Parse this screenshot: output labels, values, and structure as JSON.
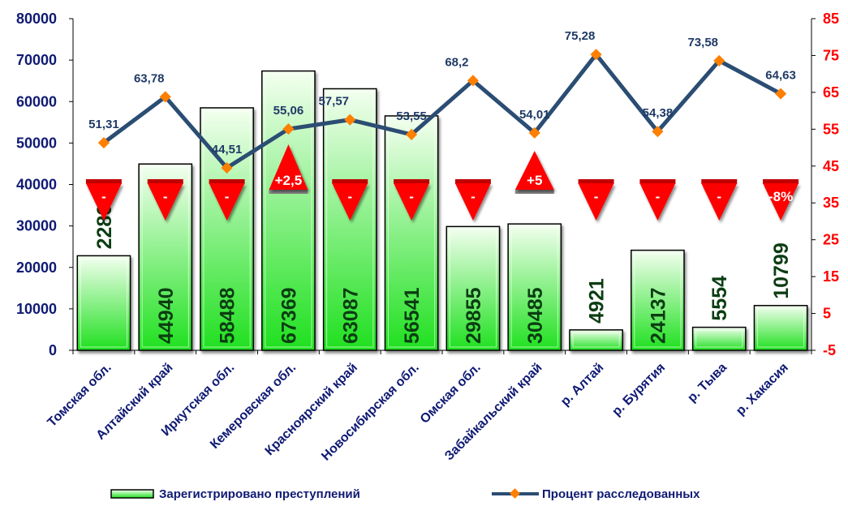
{
  "chart_data": {
    "type": "bar",
    "categories": [
      "Томская обл.",
      "Алтайский край",
      "Иркутская обл.",
      "Кемеровская обл.",
      "Красноярский край",
      "Новосибирская обл.",
      "Омская обл.",
      "Забайкальский край",
      "р. Алтай",
      "р. Бурятия",
      "р. Тыва",
      "р. Хакасия"
    ],
    "series": [
      {
        "name": "Зарегистрировано преступлений",
        "type": "bar",
        "axis": "left",
        "values": [
          22807,
          44940,
          58488,
          67369,
          63087,
          56541,
          29855,
          30485,
          4921,
          24137,
          5554,
          10799
        ],
        "labels": [
          "22807",
          "44940",
          "58488",
          "67369",
          "63087",
          "56541",
          "29855",
          "30485",
          "4921",
          "24137",
          "5554",
          "10799"
        ]
      },
      {
        "name": "Процент расследованных",
        "type": "line",
        "axis": "right",
        "values": [
          51.31,
          63.78,
          44.51,
          55.06,
          57.57,
          53.55,
          68.2,
          54.01,
          75.28,
          54.38,
          73.58,
          64.63
        ],
        "labels": [
          "51,31",
          "63,78",
          "44,51",
          "55,06",
          "57,57",
          "53,55",
          "68,2",
          "54,01",
          "75,28",
          "54,38",
          "73,58",
          "64,63"
        ]
      }
    ],
    "change_markers": [
      {
        "direction": "down",
        "label": "-"
      },
      {
        "direction": "down",
        "label": "-"
      },
      {
        "direction": "down",
        "label": "-"
      },
      {
        "direction": "up",
        "label": "+2,5"
      },
      {
        "direction": "down",
        "label": "-"
      },
      {
        "direction": "down",
        "label": "-"
      },
      {
        "direction": "down",
        "label": "-"
      },
      {
        "direction": "up",
        "label": "+5"
      },
      {
        "direction": "down",
        "label": "-"
      },
      {
        "direction": "down",
        "label": "-"
      },
      {
        "direction": "down",
        "label": "-"
      },
      {
        "direction": "down",
        "label": "-8%"
      }
    ],
    "y_left": {
      "min": 0,
      "max": 80000,
      "ticks": [
        "0",
        "10000",
        "20000",
        "30000",
        "40000",
        "50000",
        "60000",
        "70000",
        "80000"
      ]
    },
    "y_right": {
      "min": -5,
      "max": 85,
      "ticks": [
        "-5",
        "5",
        "15",
        "25",
        "35",
        "45",
        "55",
        "65",
        "75",
        "85"
      ]
    },
    "legend_position": "bottom",
    "grid": false,
    "colors": {
      "bar_top": "#f4fff0",
      "bar_bottom": "#1fe01f",
      "bar_stroke": "#000000",
      "bar_label": "#0b3d12",
      "line": "#2b4d73",
      "marker": "#ff7f00",
      "line_label": "#1f3a66",
      "left_axis_text": "#0f1a73",
      "right_axis_text": "#ff0000",
      "category_text": "#0f1a73",
      "triangle": "#ff0000"
    }
  }
}
